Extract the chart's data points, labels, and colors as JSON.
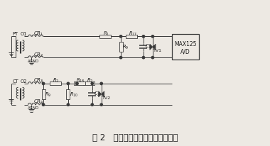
{
  "title": "图 2   交流模拟信号处理回路电路图",
  "title_fontsize": 8.5,
  "bg_color": "#ede9e3",
  "line_color": "#3a3a3a",
  "text_color": "#1a1a1a",
  "figsize": [
    3.8,
    2.07
  ],
  "dpi": 100,
  "xlim": [
    0,
    38
  ],
  "ylim": [
    0,
    20.7
  ]
}
